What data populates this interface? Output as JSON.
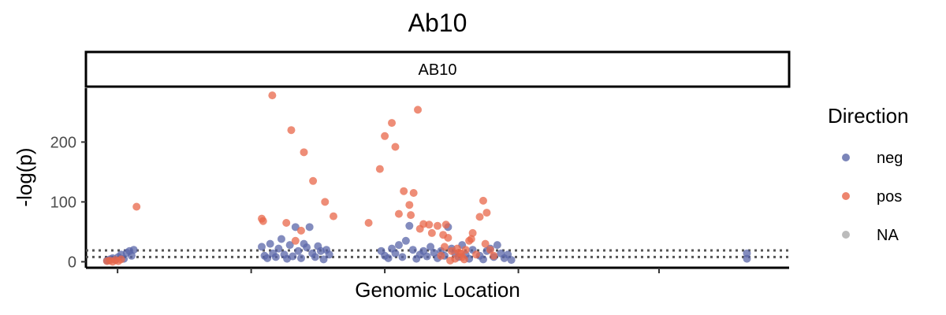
{
  "chart_data": {
    "type": "scatter",
    "title": "Ab10",
    "facet_label": "AB10",
    "xlabel": "Genomic Location",
    "ylabel": "-log(p)",
    "yticks": [
      0,
      100,
      200
    ],
    "ylim": [
      -10,
      290
    ],
    "xlim": [
      0,
      1000
    ],
    "x_ticks": [
      45,
      235,
      425,
      615,
      815
    ],
    "x_tick_labels_shown": false,
    "grid": false,
    "threshold_lines": [
      8,
      19
    ],
    "legend": {
      "title": "Direction",
      "position": "right",
      "entries": [
        {
          "name": "neg",
          "color": "#5a66a8"
        },
        {
          "name": "pos",
          "color": "#e8674a"
        },
        {
          "name": "NA",
          "color": "#aaaaaa"
        }
      ]
    },
    "series": [
      {
        "name": "neg",
        "color": "#5a66a8",
        "points": [
          [
            30,
            2
          ],
          [
            34,
            4
          ],
          [
            38,
            6
          ],
          [
            42,
            3
          ],
          [
            46,
            8
          ],
          [
            50,
            12
          ],
          [
            54,
            5
          ],
          [
            58,
            15
          ],
          [
            62,
            18
          ],
          [
            65,
            10
          ],
          [
            68,
            20
          ],
          [
            250,
            25
          ],
          [
            254,
            10
          ],
          [
            258,
            6
          ],
          [
            262,
            30
          ],
          [
            266,
            14
          ],
          [
            270,
            8
          ],
          [
            274,
            22
          ],
          [
            278,
            38
          ],
          [
            282,
            12
          ],
          [
            286,
            5
          ],
          [
            290,
            28
          ],
          [
            294,
            9
          ],
          [
            298,
            58
          ],
          [
            302,
            18
          ],
          [
            306,
            6
          ],
          [
            310,
            30
          ],
          [
            314,
            24
          ],
          [
            318,
            58
          ],
          [
            322,
            14
          ],
          [
            326,
            8
          ],
          [
            330,
            26
          ],
          [
            334,
            18
          ],
          [
            338,
            4
          ],
          [
            342,
            20
          ],
          [
            346,
            12
          ],
          [
            420,
            18
          ],
          [
            425,
            10
          ],
          [
            430,
            6
          ],
          [
            435,
            22
          ],
          [
            440,
            14
          ],
          [
            445,
            28
          ],
          [
            450,
            8
          ],
          [
            455,
            35
          ],
          [
            460,
            60
          ],
          [
            465,
            20
          ],
          [
            470,
            5
          ],
          [
            475,
            12
          ],
          [
            480,
            18
          ],
          [
            485,
            9
          ],
          [
            490,
            25
          ],
          [
            495,
            15
          ],
          [
            500,
            6
          ],
          [
            505,
            18
          ],
          [
            510,
            10
          ],
          [
            515,
            58
          ],
          [
            520,
            22
          ],
          [
            525,
            14
          ],
          [
            530,
            8
          ],
          [
            535,
            28
          ],
          [
            540,
            12
          ],
          [
            545,
            5
          ],
          [
            550,
            20
          ],
          [
            560,
            10
          ],
          [
            565,
            4
          ],
          [
            570,
            18
          ],
          [
            575,
            22
          ],
          [
            580,
            8
          ],
          [
            585,
            28
          ],
          [
            590,
            14
          ],
          [
            595,
            6
          ],
          [
            600,
            12
          ],
          [
            605,
            3
          ],
          [
            940,
            5
          ],
          [
            940,
            14
          ]
        ]
      },
      {
        "name": "pos",
        "color": "#e8674a",
        "points": [
          [
            30,
            1
          ],
          [
            34,
            2
          ],
          [
            38,
            0
          ],
          [
            42,
            3
          ],
          [
            46,
            1
          ],
          [
            50,
            4
          ],
          [
            72,
            92
          ],
          [
            265,
            278
          ],
          [
            250,
            72
          ],
          [
            252,
            68
          ],
          [
            292,
            220
          ],
          [
            310,
            183
          ],
          [
            323,
            135
          ],
          [
            340,
            100
          ],
          [
            352,
            76
          ],
          [
            285,
            65
          ],
          [
            298,
            35
          ],
          [
            306,
            52
          ],
          [
            402,
            65
          ],
          [
            418,
            155
          ],
          [
            425,
            210
          ],
          [
            435,
            232
          ],
          [
            440,
            192
          ],
          [
            452,
            118
          ],
          [
            460,
            95
          ],
          [
            466,
            115
          ],
          [
            472,
            254
          ],
          [
            445,
            80
          ],
          [
            462,
            78
          ],
          [
            475,
            55
          ],
          [
            480,
            63
          ],
          [
            488,
            62
          ],
          [
            492,
            48
          ],
          [
            500,
            60
          ],
          [
            505,
            10
          ],
          [
            510,
            25
          ],
          [
            515,
            40
          ],
          [
            520,
            18
          ],
          [
            525,
            5
          ],
          [
            530,
            15
          ],
          [
            535,
            8
          ],
          [
            540,
            20
          ],
          [
            545,
            35
          ],
          [
            550,
            48
          ],
          [
            555,
            12
          ],
          [
            560,
            75
          ],
          [
            565,
            102
          ],
          [
            570,
            82
          ],
          [
            575,
            20
          ],
          [
            580,
            10
          ],
          [
            508,
            45
          ],
          [
            512,
            62
          ],
          [
            518,
            2
          ],
          [
            528,
            22
          ],
          [
            533,
            14
          ],
          [
            538,
            4
          ],
          [
            548,
            38
          ],
          [
            568,
            30
          ]
        ]
      }
    ]
  }
}
